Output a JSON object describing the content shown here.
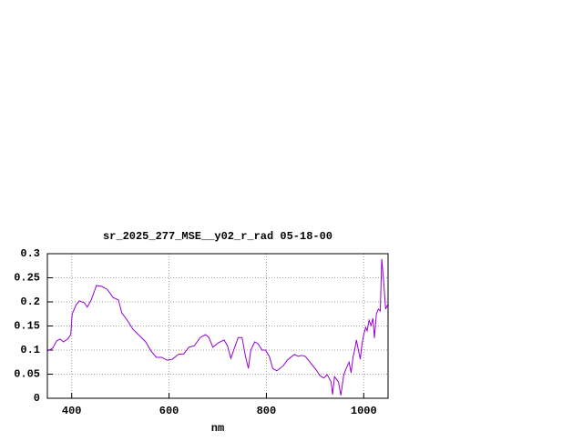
{
  "chart_data": {
    "type": "line",
    "title": "sr_2025_277_MSE__y02_r_rad 05-18-00",
    "x_label": "nm",
    "xlim": [
      350,
      1050
    ],
    "ylim": [
      0,
      0.3
    ],
    "xticks": [
      400,
      600,
      800,
      1000
    ],
    "yticks": [
      0,
      0.05,
      0.1,
      0.15,
      0.2,
      0.25,
      0.3
    ],
    "grid": true,
    "series": [
      {
        "color": "#9400d3",
        "x": [
          350,
          361,
          369,
          376,
          383,
          392,
          398,
          401,
          409,
          416,
          426,
          432,
          440,
          451,
          462,
          473,
          485,
          496,
          503,
          514,
          526,
          537,
          552,
          563,
          574,
          585,
          596,
          607,
          619,
          630,
          641,
          652,
          664,
          675,
          682,
          690,
          701,
          713,
          720,
          727,
          735,
          742,
          750,
          757,
          763,
          768,
          776,
          783,
          791,
          798,
          806,
          813,
          821,
          828,
          835,
          843,
          850,
          858,
          865,
          873,
          880,
          888,
          895,
          903,
          910,
          918,
          925,
          933,
          936,
          940,
          948,
          953,
          959,
          964,
          970,
          974,
          978,
          981,
          985,
          989,
          993,
          996,
          1000,
          1004,
          1007,
          1011,
          1015,
          1019,
          1022,
          1026,
          1030,
          1034,
          1037,
          1041,
          1045,
          1049
        ],
        "values": [
          0.098,
          0.104,
          0.119,
          0.123,
          0.117,
          0.123,
          0.132,
          0.175,
          0.194,
          0.202,
          0.198,
          0.189,
          0.204,
          0.234,
          0.232,
          0.226,
          0.209,
          0.204,
          0.177,
          0.162,
          0.143,
          0.132,
          0.117,
          0.098,
          0.085,
          0.085,
          0.079,
          0.081,
          0.091,
          0.092,
          0.106,
          0.109,
          0.126,
          0.132,
          0.126,
          0.106,
          0.115,
          0.121,
          0.109,
          0.083,
          0.106,
          0.126,
          0.126,
          0.087,
          0.062,
          0.1,
          0.117,
          0.113,
          0.1,
          0.1,
          0.087,
          0.062,
          0.057,
          0.062,
          0.068,
          0.079,
          0.085,
          0.091,
          0.087,
          0.089,
          0.087,
          0.077,
          0.068,
          0.058,
          0.047,
          0.042,
          0.049,
          0.034,
          0.008,
          0.045,
          0.034,
          0.006,
          0.049,
          0.062,
          0.075,
          0.053,
          0.085,
          0.098,
          0.121,
          0.1,
          0.081,
          0.109,
          0.132,
          0.147,
          0.14,
          0.162,
          0.151,
          0.166,
          0.125,
          0.175,
          0.185,
          0.181,
          0.289,
          0.242,
          0.185,
          0.194
        ]
      }
    ]
  }
}
